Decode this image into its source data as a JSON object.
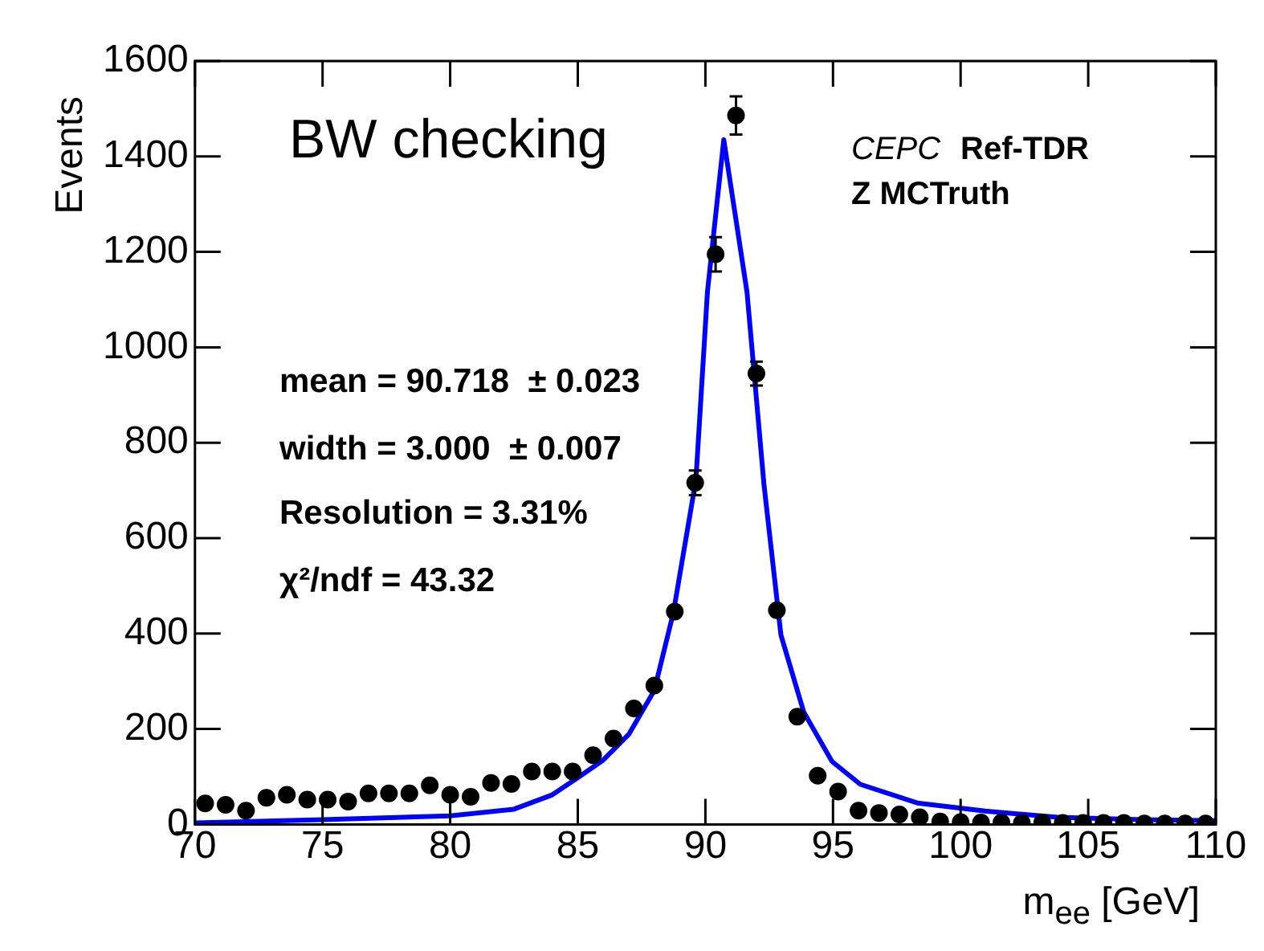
{
  "chart_data": {
    "type": "scatter",
    "xlabel": "m$_{ee}$ [GeV]",
    "ylabel": "Events",
    "xlim": [
      70,
      110
    ],
    "xticks": [
      70,
      75,
      80,
      85,
      90,
      95,
      100,
      105,
      110
    ],
    "ylim": [
      0,
      1600
    ],
    "yticks": [
      0,
      200,
      400,
      600,
      800,
      1000,
      1200,
      1400,
      1600
    ],
    "grid": false,
    "legend": false,
    "series": [
      {
        "type": "scatter",
        "color": "#000000",
        "marker": "circle",
        "x": [
          70.4,
          71.2,
          72,
          72.8,
          73.6,
          74.4,
          75.2,
          76,
          76.8,
          77.6,
          78.4,
          79.2,
          80,
          80.8,
          81.6,
          82.4,
          83.2,
          84,
          84.8,
          85.6,
          86.4,
          87.2,
          88,
          88.8,
          89.6,
          90.4,
          91.2,
          92,
          92.8,
          93.6,
          94.4,
          95.2,
          96,
          96.8,
          97.6,
          98.4,
          99.2,
          100,
          100.8,
          101.6,
          102.4,
          103.2,
          104,
          104.8,
          105.6,
          106.4,
          107.2,
          108,
          108.8,
          109.6
        ],
        "values": [
          44,
          41,
          29,
          56,
          62,
          52,
          52,
          48,
          65,
          65,
          65,
          82,
          62,
          58,
          87,
          85,
          111,
          111,
          111,
          145,
          180,
          243,
          291,
          446,
          716,
          1195,
          1486,
          945,
          449,
          226,
          102,
          69,
          29,
          24,
          21,
          15,
          6,
          5,
          4,
          4,
          3,
          4,
          3,
          3,
          3,
          3,
          2,
          2,
          2,
          2
        ],
        "errors": [
          null,
          null,
          null,
          null,
          null,
          null,
          null,
          null,
          null,
          null,
          null,
          null,
          null,
          null,
          null,
          null,
          null,
          null,
          null,
          null,
          null,
          null,
          null,
          null,
          26,
          36,
          40,
          25,
          null,
          null,
          null,
          null,
          null,
          null,
          null,
          null,
          null,
          null,
          null,
          null,
          null,
          null,
          null,
          null,
          null,
          null,
          null,
          null,
          null,
          null
        ]
      },
      {
        "type": "line",
        "color": "#0000ff",
        "marker": "none",
        "line_style": "solid",
        "x": [
          70,
          75,
          80,
          82.5,
          84,
          85,
          86,
          87,
          88,
          88.75,
          89.63,
          90.08,
          90.72,
          91.63,
          92.3,
          92.96,
          93.85,
          94.96,
          96.07,
          98.3,
          100.96,
          103.8,
          107.1,
          110
        ],
        "values": [
          3,
          10,
          18,
          32,
          62,
          98,
          135,
          189,
          281,
          445,
          723,
          1116,
          1435,
          1116,
          710,
          397,
          236,
          132,
          84,
          45,
          28,
          15,
          10,
          8
        ]
      }
    ],
    "annotations": [
      "BW checking",
      "CEPC",
      "Ref-TDR",
      "Z MCTruth",
      "mean = 90.718  ± 0.023",
      "width = 3.000  ± 0.007",
      "Resolution = 3.31%",
      "χ²/ndf = 43.32"
    ]
  }
}
